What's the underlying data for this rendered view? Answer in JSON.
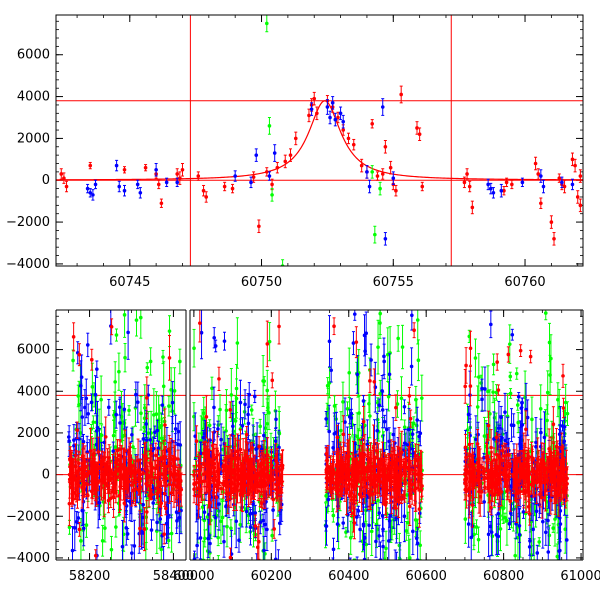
{
  "colors": {
    "red": "#ff0000",
    "green": "#00ff00",
    "blue": "#0000ff",
    "axis": "#000000"
  },
  "chart_data": [
    {
      "type": "scatter",
      "title": "",
      "xlabel": "",
      "ylabel": "",
      "xlim": [
        60742.2,
        60762.2
      ],
      "ylim": [
        -4100,
        7900
      ],
      "xticks": [
        60745,
        60750,
        60755,
        60760
      ],
      "yticks": [
        -4000,
        -2000,
        0,
        2000,
        4000,
        6000
      ],
      "minor_x_step": 1,
      "minor_y_step": 400,
      "hlines": [
        0,
        3800
      ],
      "vlines": [
        60747.3,
        60757.2
      ],
      "model_curve": {
        "baseline": 0,
        "peak": 3800,
        "center": 60752.4,
        "width": 0.75,
        "range": [
          60742.2,
          60762.2
        ]
      },
      "series": [
        {
          "name": "red",
          "color": "#ff0000",
          "points": [
            [
              60742.4,
              300,
              250
            ],
            [
              60742.5,
              100,
              250
            ],
            [
              60742.6,
              -300,
              250
            ],
            [
              60743.5,
              700,
              150
            ],
            [
              60744.8,
              500,
              150
            ],
            [
              60745.6,
              600,
              150
            ],
            [
              60746.0,
              300,
              200
            ],
            [
              60746.1,
              -200,
              200
            ],
            [
              60746.2,
              -1100,
              200
            ],
            [
              60746.8,
              300,
              250
            ],
            [
              60746.9,
              100,
              300
            ],
            [
              60747.0,
              500,
              300
            ],
            [
              60747.6,
              200,
              200
            ],
            [
              60747.8,
              -500,
              250
            ],
            [
              60747.9,
              -800,
              250
            ],
            [
              60748.6,
              -300,
              200
            ],
            [
              60748.9,
              -400,
              200
            ],
            [
              60749.7,
              150,
              250
            ],
            [
              60749.9,
              -2200,
              300
            ],
            [
              60750.2,
              400,
              200
            ],
            [
              60750.4,
              -200,
              250
            ],
            [
              60750.6,
              600,
              250
            ],
            [
              60750.9,
              900,
              300
            ],
            [
              60751.1,
              1200,
              300
            ],
            [
              60751.3,
              2000,
              300
            ],
            [
              60751.8,
              3100,
              300
            ],
            [
              60751.9,
              3600,
              300
            ],
            [
              60752.0,
              3900,
              300
            ],
            [
              60752.1,
              3200,
              300
            ],
            [
              60752.5,
              3800,
              250
            ],
            [
              60752.7,
              3500,
              250
            ],
            [
              60752.9,
              3000,
              250
            ],
            [
              60753.1,
              2400,
              250
            ],
            [
              60753.3,
              2000,
              250
            ],
            [
              60753.5,
              1700,
              250
            ],
            [
              60753.8,
              700,
              300
            ],
            [
              60754.0,
              400,
              300
            ],
            [
              60754.2,
              2700,
              200
            ],
            [
              60754.4,
              200,
              200
            ],
            [
              60754.6,
              300,
              250
            ],
            [
              60754.7,
              1600,
              300
            ],
            [
              60754.9,
              600,
              300
            ],
            [
              60755.0,
              -200,
              250
            ],
            [
              60755.1,
              -500,
              250
            ],
            [
              60755.3,
              4100,
              400
            ],
            [
              60755.9,
              2500,
              300
            ],
            [
              60756.0,
              2200,
              300
            ],
            [
              60756.1,
              -300,
              200
            ],
            [
              60757.7,
              -100,
              250
            ],
            [
              60757.8,
              300,
              250
            ],
            [
              60757.9,
              -300,
              250
            ],
            [
              60758.0,
              -1300,
              300
            ],
            [
              60759.2,
              -500,
              200
            ],
            [
              60759.3,
              -100,
              200
            ],
            [
              60759.5,
              -200,
              200
            ],
            [
              60760.4,
              800,
              300
            ],
            [
              60760.5,
              300,
              250
            ],
            [
              60760.6,
              -1100,
              250
            ],
            [
              60761.3,
              100,
              200
            ],
            [
              60761.4,
              -200,
              250
            ],
            [
              60761.5,
              -300,
              300
            ],
            [
              60761.0,
              -2000,
              300
            ],
            [
              60761.1,
              -2800,
              300
            ],
            [
              60761.8,
              1000,
              300
            ],
            [
              60761.9,
              700,
              300
            ],
            [
              60762.0,
              -800,
              300
            ],
            [
              60762.1,
              -1200,
              300
            ],
            [
              60762.1,
              200,
              300
            ]
          ]
        },
        {
          "name": "green",
          "color": "#00ff00",
          "points": [
            [
              60750.2,
              7500,
              400
            ],
            [
              60750.3,
              2600,
              400
            ],
            [
              60750.4,
              -700,
              300
            ],
            [
              60754.2,
              400,
              300
            ],
            [
              60754.3,
              -2600,
              400
            ],
            [
              60754.5,
              -400,
              300
            ],
            [
              60750.8,
              -4100,
              300
            ]
          ]
        },
        {
          "name": "blue",
          "color": "#0000ff",
          "points": [
            [
              60743.4,
              -400,
              200
            ],
            [
              60743.5,
              -600,
              200
            ],
            [
              60743.6,
              -700,
              250
            ],
            [
              60743.7,
              -200,
              200
            ],
            [
              60744.5,
              700,
              250
            ],
            [
              60744.6,
              -300,
              250
            ],
            [
              60744.8,
              -500,
              250
            ],
            [
              60745.3,
              -200,
              200
            ],
            [
              60745.4,
              -600,
              250
            ],
            [
              60746.0,
              500,
              300
            ],
            [
              60746.4,
              -100,
              200
            ],
            [
              60746.8,
              -100,
              200
            ],
            [
              60749.0,
              200,
              250
            ],
            [
              60749.6,
              -100,
              250
            ],
            [
              60749.8,
              1200,
              300
            ],
            [
              60750.3,
              200,
              200
            ],
            [
              60750.5,
              1300,
              400
            ],
            [
              60751.9,
              3400,
              300
            ],
            [
              60752.5,
              3500,
              350
            ],
            [
              60752.6,
              3000,
              300
            ],
            [
              60752.7,
              3700,
              300
            ],
            [
              60752.8,
              2900,
              300
            ],
            [
              60753.0,
              3200,
              300
            ],
            [
              60753.1,
              2800,
              300
            ],
            [
              60754.0,
              400,
              300
            ],
            [
              60754.1,
              -300,
              300
            ],
            [
              60754.6,
              3500,
              400
            ],
            [
              60754.7,
              -2800,
              300
            ],
            [
              60755.0,
              100,
              300
            ],
            [
              60758.6,
              -200,
              250
            ],
            [
              60758.7,
              -400,
              250
            ],
            [
              60758.8,
              -600,
              250
            ],
            [
              60759.1,
              -500,
              300
            ],
            [
              60759.9,
              -100,
              200
            ],
            [
              60760.6,
              200,
              300
            ],
            [
              60760.7,
              -300,
              300
            ],
            [
              60761.4,
              -100,
              250
            ],
            [
              60761.8,
              -200,
              250
            ]
          ]
        }
      ]
    },
    {
      "type": "scatter",
      "title": "",
      "xlabel": "",
      "ylabel": "",
      "xlim": [
        58120,
        61005
      ],
      "ylim": [
        -4100,
        7900
      ],
      "xticks": [
        58200,
        58400,
        60000,
        60200,
        60400,
        60600,
        60800,
        61000
      ],
      "xtick_labels": [
        "58200",
        "58400",
        "60000",
        "60200",
        "60400",
        "60600",
        "60800",
        "61000"
      ],
      "yticks": [
        -4000,
        -2000,
        0,
        2000,
        4000,
        6000
      ],
      "minor_x_step": 50,
      "minor_y_step": 400,
      "x_breaks": [
        {
          "range": [
            58120,
            58430
          ]
        },
        {
          "range": [
            59990,
            61005
          ]
        }
      ],
      "hlines": [
        0,
        3800
      ],
      "seasons": [
        {
          "range": [
            58150,
            58420
          ],
          "density": 140
        },
        {
          "range": [
            60000,
            60230
          ],
          "density": 130
        },
        {
          "range": [
            60340,
            60590
          ],
          "density": 150
        },
        {
          "range": [
            60700,
            60965
          ],
          "density": 150
        }
      ],
      "series": [
        {
          "name": "red",
          "color": "#ff0000",
          "scatter_sd": 900,
          "outlier_rate": 0.06
        },
        {
          "name": "blue",
          "color": "#0000ff",
          "scatter_sd": 2000,
          "outlier_rate": 0.12
        },
        {
          "name": "green",
          "color": "#00ff00",
          "scatter_sd": 2300,
          "outlier_rate": 0.15
        }
      ]
    }
  ]
}
